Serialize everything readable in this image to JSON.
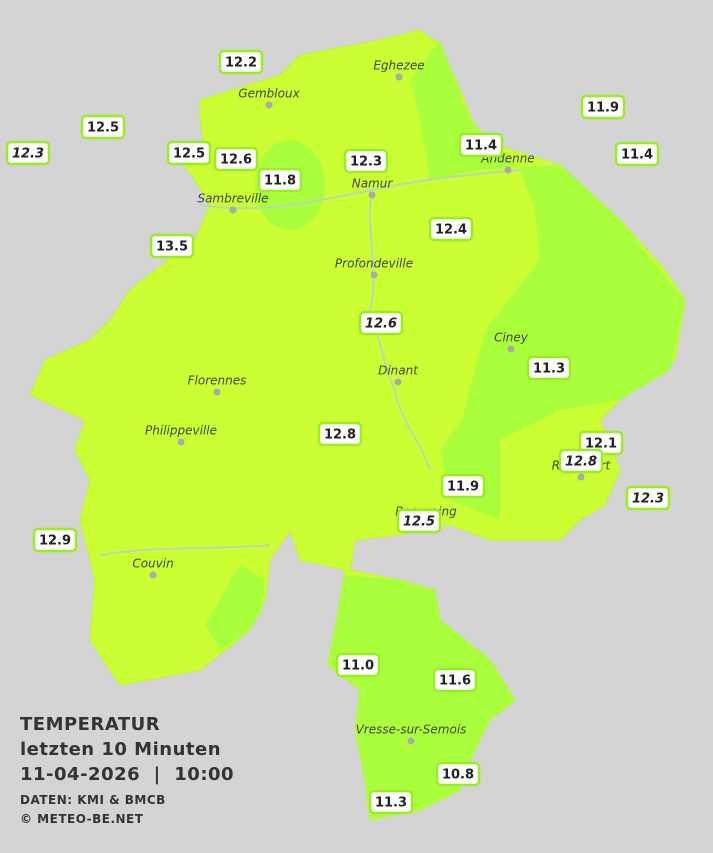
{
  "title": "TEMPERATUR",
  "subtitle": "letzten 10 Minuten",
  "datetime": "11-04-2026  |  10:00",
  "source": "DATEN: KMI & BMCB",
  "copyright": "© METEO-BE.NET",
  "cities": [
    "Eghezee",
    "Gembloux",
    "Andenne",
    "Namur",
    "Sambreville",
    "Profondeville",
    "Ciney",
    "Dinant",
    "Florennes",
    "Philippeville",
    "Rochefort",
    "Beauraing",
    "Couvin",
    "Vresse-sur-Semois"
  ],
  "stations": [
    {
      "value": "12.2"
    },
    {
      "value": "12.5"
    },
    {
      "value": "12.3",
      "italic": true
    },
    {
      "value": "12.5"
    },
    {
      "value": "12.6"
    },
    {
      "value": "11.8"
    },
    {
      "value": "12.3"
    },
    {
      "value": "11.4"
    },
    {
      "value": "11.9"
    },
    {
      "value": "11.4"
    },
    {
      "value": "13.5"
    },
    {
      "value": "12.4"
    },
    {
      "value": "12.6",
      "italic": true
    },
    {
      "value": "11.3"
    },
    {
      "value": "12.8"
    },
    {
      "value": "12.1"
    },
    {
      "value": "12.8",
      "italic": true
    },
    {
      "value": "11.9"
    },
    {
      "value": "12.3",
      "italic": true
    },
    {
      "value": "12.5",
      "italic": true
    },
    {
      "value": "12.9"
    },
    {
      "value": "11.0"
    },
    {
      "value": "11.6"
    },
    {
      "value": "10.8"
    },
    {
      "value": "11.3"
    }
  ]
}
